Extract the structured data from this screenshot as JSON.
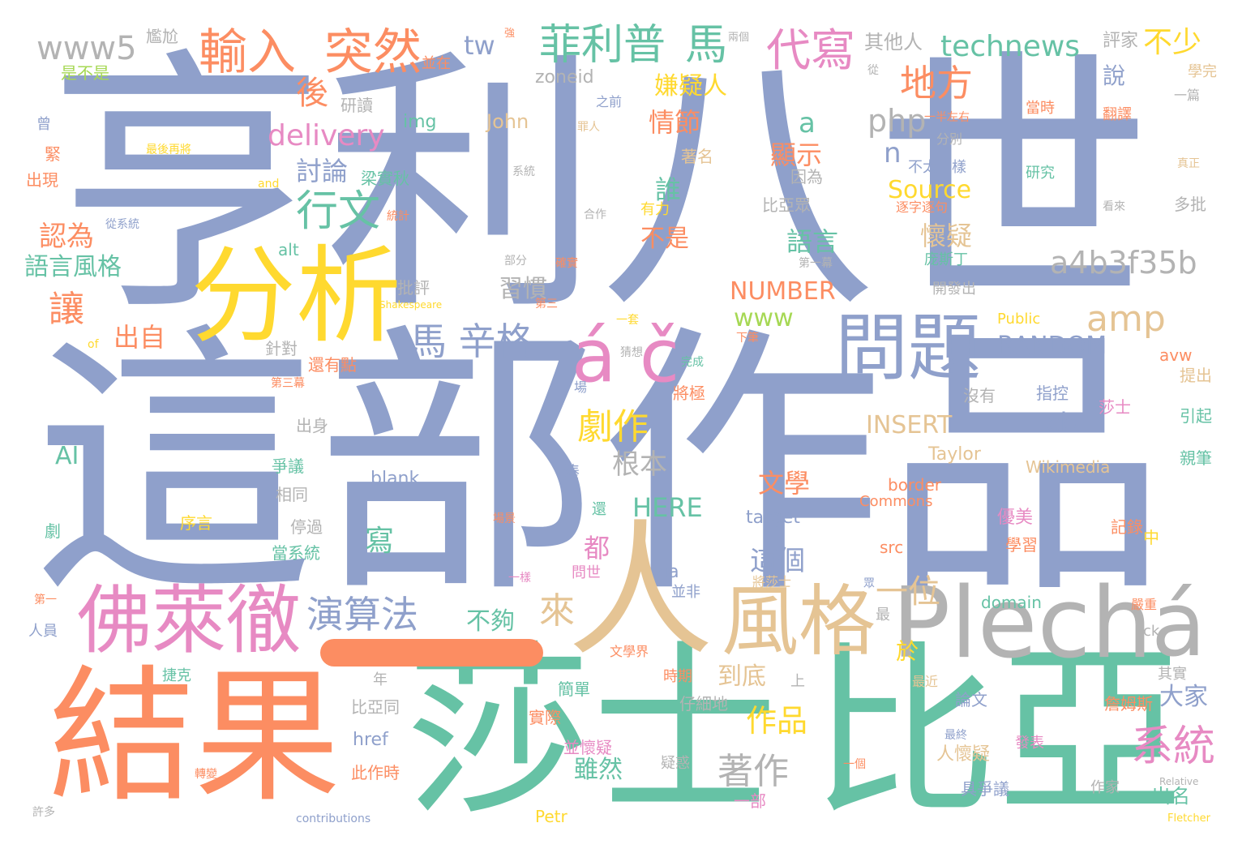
{
  "palette": {
    "blue": "#8fa0cb",
    "orange": "#fc8d62",
    "green": "#66c2a5",
    "yellow": "#ffd92f",
    "pink": "#e78ac3",
    "tan": "#e5c494",
    "gray": "#b3b3b3",
    "lime": "#a6d854",
    "background": "#ffffff"
  },
  "words": [
    "亨利八世",
    "這部作品",
    "莎士",
    "比亞",
    "結果",
    "分析",
    "人",
    "Plech",
    "á",
    "問題",
    "風格",
    "佛萊徹",
    "á č",
    "系統",
    "輸入",
    "菲利普",
    "馬",
    "代寫",
    "地方",
    "www5",
    "technews",
    "不少",
    "tw",
    "行文",
    "amp",
    "a4b3f35b",
    "php",
    "演算法",
    "一位",
    "來",
    "馬 辛格",
    "劇作",
    "著作",
    "作品",
    "delivery",
    "討論",
    "Source",
    "NUMBER",
    "RANDOM",
    "INSERT",
    "cb",
    "www",
    "HERE",
    "AI",
    "後",
    "讓",
    "認為",
    "語言風格",
    "出自",
    "嫌疑人",
    "情節",
    "顯示",
    "語言",
    "懷疑",
    "習慣",
    "誰",
    "不是",
    "根本",
    "文學",
    "這個",
    "都",
    "寫",
    "不夠",
    "大家",
    "於",
    "到底",
    "雖然",
    "出名",
    "說",
    "n",
    "a",
    "img",
    "John",
    "zoneid",
    "其他人",
    "評家",
    "尷尬",
    "是不是",
    "並在",
    "研讀",
    "曾",
    "最後再將",
    "出現",
    "緊",
    "and",
    "梁實秋",
    "從系統",
    "統計",
    "alt",
    "批評",
    "針對",
    "還有點",
    "第三幕",
    "Shakespeare",
    "of",
    "出身",
    "爭議",
    "相同",
    "序言",
    "劇",
    "停過",
    "當系統",
    "第一",
    "人員",
    "捷克",
    "年",
    "比亞同",
    "href",
    "此作時",
    "許多",
    "轉變",
    "contributions",
    "Petr",
    "blank",
    "target",
    "src",
    "via",
    "domain",
    "Taylor",
    "Wikimedia",
    "Commons",
    "border",
    "Public",
    "avw",
    "ck",
    "Relative",
    "Fletcher",
    "著名",
    "因為",
    "比亞眾",
    "有力",
    "合作",
    "不太一樣",
    "分別",
    "逐字逐句",
    "研究",
    "當時",
    "翻譯",
    "一篇",
    "學完",
    "真正",
    "看來",
    "多批",
    "庞斯丁",
    "開發出",
    "第一幕",
    "部分",
    "確實",
    "第三",
    "一套",
    "下筆",
    "完成",
    "猜想",
    "將極",
    "沒有",
    "指控",
    "莎士",
    "引起",
    "親筆",
    "提出",
    "記錄",
    "優美",
    "學習",
    "中",
    "嚴重",
    "眾",
    "最",
    "論文",
    "詹姆斯",
    "其實",
    "發表",
    "人懷疑",
    "具爭議",
    "作家",
    "一部",
    "簡單",
    "實際",
    "並懷疑",
    "疑惑",
    "時期",
    "仔細地",
    "上",
    "最終",
    "一個",
    "最近",
    "文學界",
    "問世",
    "一樣",
    "將莎士",
    "並非",
    "湊",
    "場",
    "還",
    "場景",
    "一半左右",
    "從",
    "兩個",
    "突然",
    "強",
    "之前",
    "罪人",
    "系統"
  ]
}
